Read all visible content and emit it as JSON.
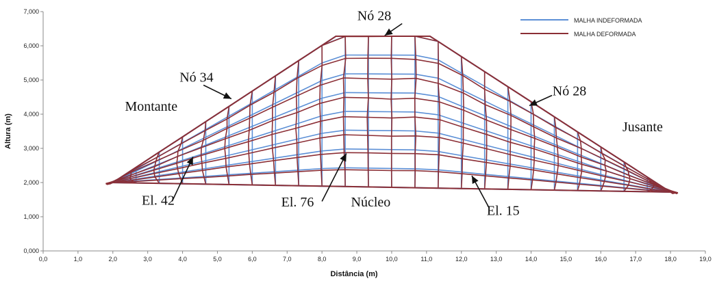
{
  "chart_data": {
    "type": "line",
    "xlabel": "Distância (m)",
    "ylabel": "Altura (m)",
    "xlim": [
      0,
      19
    ],
    "ylim": [
      0,
      7
    ],
    "x_ticks": [
      "0,0",
      "1,0",
      "2,0",
      "3,0",
      "4,0",
      "5,0",
      "6,0",
      "7,0",
      "8,0",
      "9,0",
      "10,0",
      "11,0",
      "12,0",
      "13,0",
      "14,0",
      "15,0",
      "16,0",
      "17,0",
      "18,0",
      "19,0"
    ],
    "y_ticks": [
      "0,000",
      "1,000",
      "2,000",
      "3,000",
      "4,000",
      "5,000",
      "6,000",
      "7,000"
    ],
    "grid": false,
    "legend_position": "top-right",
    "series": [
      {
        "name": "MALHA INDEFORMADA",
        "color": "#5b8fd6",
        "x": [
          2.0,
          8.4,
          11.1,
          18.0
        ],
        "y": [
          2.0,
          6.28,
          6.28,
          1.72
        ]
      },
      {
        "name": "MALHA DEFORMADA",
        "color": "#8b2e35",
        "x": [
          2.0,
          8.4,
          11.1,
          18.0
        ],
        "y": [
          2.0,
          6.28,
          6.28,
          1.72
        ]
      }
    ],
    "annotations": [
      {
        "text": "Nó 28",
        "x": 9.5,
        "y": 6.75
      },
      {
        "text": "Nó 34",
        "x": 4.4,
        "y": 4.95
      },
      {
        "text": "Nó 28",
        "x": 15.1,
        "y": 4.55
      },
      {
        "text": "Montante",
        "x": 3.1,
        "y": 4.1
      },
      {
        "text": "Jusante",
        "x": 17.2,
        "y": 3.5
      },
      {
        "text": "El. 42",
        "x": 3.3,
        "y": 1.35
      },
      {
        "text": "El. 76",
        "x": 7.3,
        "y": 1.3
      },
      {
        "text": "Núcleo",
        "x": 9.4,
        "y": 1.3
      },
      {
        "text": "El. 15",
        "x": 13.2,
        "y": 1.05
      }
    ]
  }
}
